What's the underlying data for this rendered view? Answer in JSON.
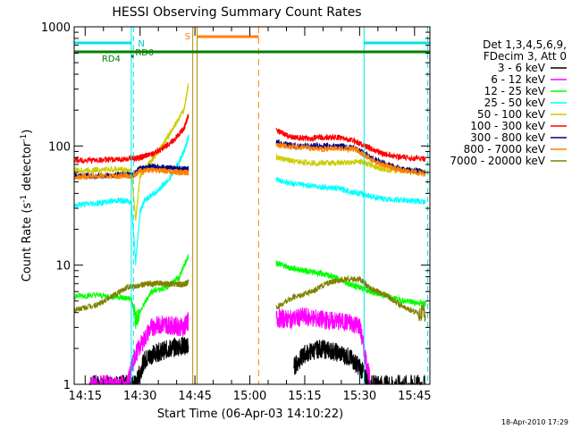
{
  "chart_data": {
    "type": "line",
    "title": "HESSI Observing Summary Count Rates",
    "xlabel": "Start Time (06-Apr-03 14:10:22)",
    "ylabel_main": "Count Rate (s",
    "ylabel_sup1": "-1",
    "ylabel_mid": " detector",
    "ylabel_sup2": "-1",
    "ylabel_end": ")",
    "y_scale": "log",
    "ylim": [
      1,
      1000
    ],
    "xlim_minutes": [
      14.2,
      15.82
    ],
    "x_ticks": [
      {
        "label": "14:15",
        "t": 14.25
      },
      {
        "label": "14:30",
        "t": 14.5
      },
      {
        "label": "14:45",
        "t": 14.75
      },
      {
        "label": "15:00",
        "t": 15.0
      },
      {
        "label": "15:15",
        "t": 15.25
      },
      {
        "label": "15:30",
        "t": 15.5
      },
      {
        "label": "15:45",
        "t": 15.75
      }
    ],
    "y_ticks": [
      {
        "label": "1",
        "v": 1
      },
      {
        "label": "10",
        "v": 10
      },
      {
        "label": "100",
        "v": 100
      },
      {
        "label": "1000",
        "v": 1000
      }
    ],
    "legend_header": [
      "Det 1,3,4,5,6,9,",
      "FDecim 3, Att 0"
    ],
    "legend_placement": "right",
    "series": [
      {
        "name": "3 - 6 keV",
        "color": "#000000",
        "segments": [
          {
            "t": [
              14.27,
              14.33,
              14.39,
              14.45,
              14.48,
              14.52,
              14.56,
              14.6,
              14.64,
              14.69,
              14.72
            ],
            "v": [
              1,
              1,
              1,
              1,
              1,
              1.6,
              1.8,
              1.9,
              2.0,
              2.1,
              2.1
            ]
          },
          {
            "t": [
              15.2,
              15.25,
              15.32,
              15.38,
              15.45,
              15.5,
              15.55,
              15.6,
              15.7,
              15.8
            ],
            "v": [
              1.4,
              1.8,
              2.0,
              1.9,
              1.7,
              1.4,
              1,
              1,
              1,
              1
            ]
          }
        ]
      },
      {
        "name": "6 - 12 keV",
        "color": "#ff00ff",
        "segments": [
          {
            "t": [
              14.27,
              14.35,
              14.44,
              14.48,
              14.55,
              14.6,
              14.65,
              14.7,
              14.72
            ],
            "v": [
              1,
              1,
              1,
              1.8,
              3.0,
              3.2,
              3.1,
              3.0,
              3.4
            ]
          },
          {
            "t": [
              15.12,
              15.18,
              15.25,
              15.32,
              15.38,
              15.45,
              15.5,
              15.55
            ],
            "v": [
              3.6,
              3.5,
              3.7,
              3.5,
              3.4,
              3.3,
              3.1,
              1
            ]
          }
        ]
      },
      {
        "name": "12 - 25 keV",
        "color": "#00ff00",
        "segments": [
          {
            "t": [
              14.2,
              14.3,
              14.4,
              14.46,
              14.48,
              14.55,
              14.62,
              14.68,
              14.72
            ],
            "v": [
              5.5,
              5.6,
              5.4,
              5.2,
              3.5,
              6.0,
              6.5,
              8.0,
              12.0
            ]
          },
          {
            "t": [
              15.12,
              15.18,
              15.25,
              15.32,
              15.38,
              15.45,
              15.5,
              15.55,
              15.62,
              15.7,
              15.78,
              15.8
            ],
            "v": [
              10.5,
              9.5,
              9.0,
              8.5,
              8.0,
              7.0,
              6.5,
              6.0,
              5.5,
              5.0,
              4.8,
              4.7
            ]
          }
        ]
      },
      {
        "name": "25 - 50 keV",
        "color": "#00ffff",
        "segments": [
          {
            "t": [
              14.2,
              14.3,
              14.4,
              14.46,
              14.48,
              14.5,
              14.52,
              14.58,
              14.64,
              14.68,
              14.71,
              14.72
            ],
            "v": [
              32,
              33,
              35,
              34,
              10.5,
              28,
              35,
              42,
              55,
              75,
              100,
              120
            ]
          },
          {
            "t": [
              15.12,
              15.2,
              15.3,
              15.4,
              15.5,
              15.6,
              15.7,
              15.8
            ],
            "v": [
              52,
              48,
              46,
              44,
              40,
              36,
              35,
              34
            ]
          }
        ]
      },
      {
        "name": "50 - 100 keV",
        "color": "#cccc00",
        "segments": [
          {
            "t": [
              14.2,
              14.3,
              14.4,
              14.46,
              14.48,
              14.5,
              14.55,
              14.6,
              14.65,
              14.7,
              14.72
            ],
            "v": [
              62,
              63,
              64,
              62,
              24,
              55,
              75,
              100,
              140,
              200,
              330
            ]
          },
          {
            "t": [
              15.12,
              15.2,
              15.3,
              15.4,
              15.5,
              15.55,
              15.6,
              15.7,
              15.8
            ],
            "v": [
              80,
              74,
              72,
              72,
              74,
              70,
              64,
              62,
              60
            ]
          }
        ]
      },
      {
        "name": "100 - 300 keV",
        "color": "#ff0000",
        "segments": [
          {
            "t": [
              14.2,
              14.3,
              14.4,
              14.47,
              14.5,
              14.55,
              14.6,
              14.65,
              14.7,
              14.72
            ],
            "v": [
              76,
              76,
              77,
              78,
              80,
              85,
              95,
              110,
              140,
              180
            ]
          },
          {
            "t": [
              15.12,
              15.18,
              15.25,
              15.32,
              15.4,
              15.48,
              15.55,
              15.62,
              15.7,
              15.8
            ],
            "v": [
              135,
              120,
              115,
              118,
              118,
              110,
              95,
              85,
              80,
              78
            ]
          }
        ]
      },
      {
        "name": "300 - 800 keV",
        "color": "#000080",
        "segments": [
          {
            "t": [
              14.2,
              14.3,
              14.4,
              14.47,
              14.5,
              14.55,
              14.6,
              14.65,
              14.7,
              14.72
            ],
            "v": [
              56,
              56,
              57,
              57,
              65,
              67,
              66,
              65,
              64,
              64
            ]
          },
          {
            "t": [
              15.12,
              15.2,
              15.3,
              15.4,
              15.48,
              15.55,
              15.62,
              15.7,
              15.8
            ],
            "v": [
              108,
              100,
              100,
              100,
              96,
              80,
              70,
              64,
              60
            ]
          }
        ]
      },
      {
        "name": "800 - 7000 keV",
        "color": "#ff8000",
        "segments": [
          {
            "t": [
              14.2,
              14.3,
              14.4,
              14.47,
              14.5,
              14.55,
              14.6,
              14.65,
              14.7,
              14.72
            ],
            "v": [
              55,
              56,
              56,
              56,
              62,
              63,
              62,
              61,
              60,
              60
            ]
          },
          {
            "t": [
              15.12,
              15.2,
              15.3,
              15.4,
              15.48,
              15.55,
              15.62,
              15.7,
              15.8
            ],
            "v": [
              102,
              98,
              95,
              95,
              94,
              78,
              68,
              62,
              58
            ]
          }
        ]
      },
      {
        "name": "7000 - 20000 keV",
        "color": "#808000",
        "segments": [
          {
            "t": [
              14.2,
              14.3,
              14.38,
              14.45,
              14.5,
              14.55,
              14.6,
              14.65,
              14.7,
              14.72
            ],
            "v": [
              4.2,
              4.6,
              5.6,
              6.6,
              6.8,
              7.0,
              7.0,
              6.9,
              6.9,
              7.2
            ]
          },
          {
            "t": [
              15.12,
              15.2,
              15.28,
              15.35,
              15.42,
              15.5,
              15.55,
              15.62,
              15.7,
              15.8
            ],
            "v": [
              4.4,
              5.4,
              6.0,
              7.0,
              7.6,
              7.6,
              6.4,
              5.6,
              4.4,
              3.8
            ]
          }
        ]
      }
    ],
    "annotations": {
      "saa_label": "S",
      "night_label": "N",
      "rd4_label": "RD4",
      "rd0_label": "RD0"
    },
    "markers": {
      "cyan_solid": [
        14.2,
        14.46,
        15.52,
        15.82
      ],
      "cyan_dashed": [
        14.47,
        15.81
      ],
      "orange_dashed": [
        15.04
      ],
      "olive_solid": [
        14.74,
        14.76
      ],
      "orange_bar": [
        14.76,
        15.04
      ],
      "green_bar": [
        14.2,
        15.82
      ]
    }
  },
  "footer": {
    "timestamp": "18-Apr-2010 17:29"
  }
}
